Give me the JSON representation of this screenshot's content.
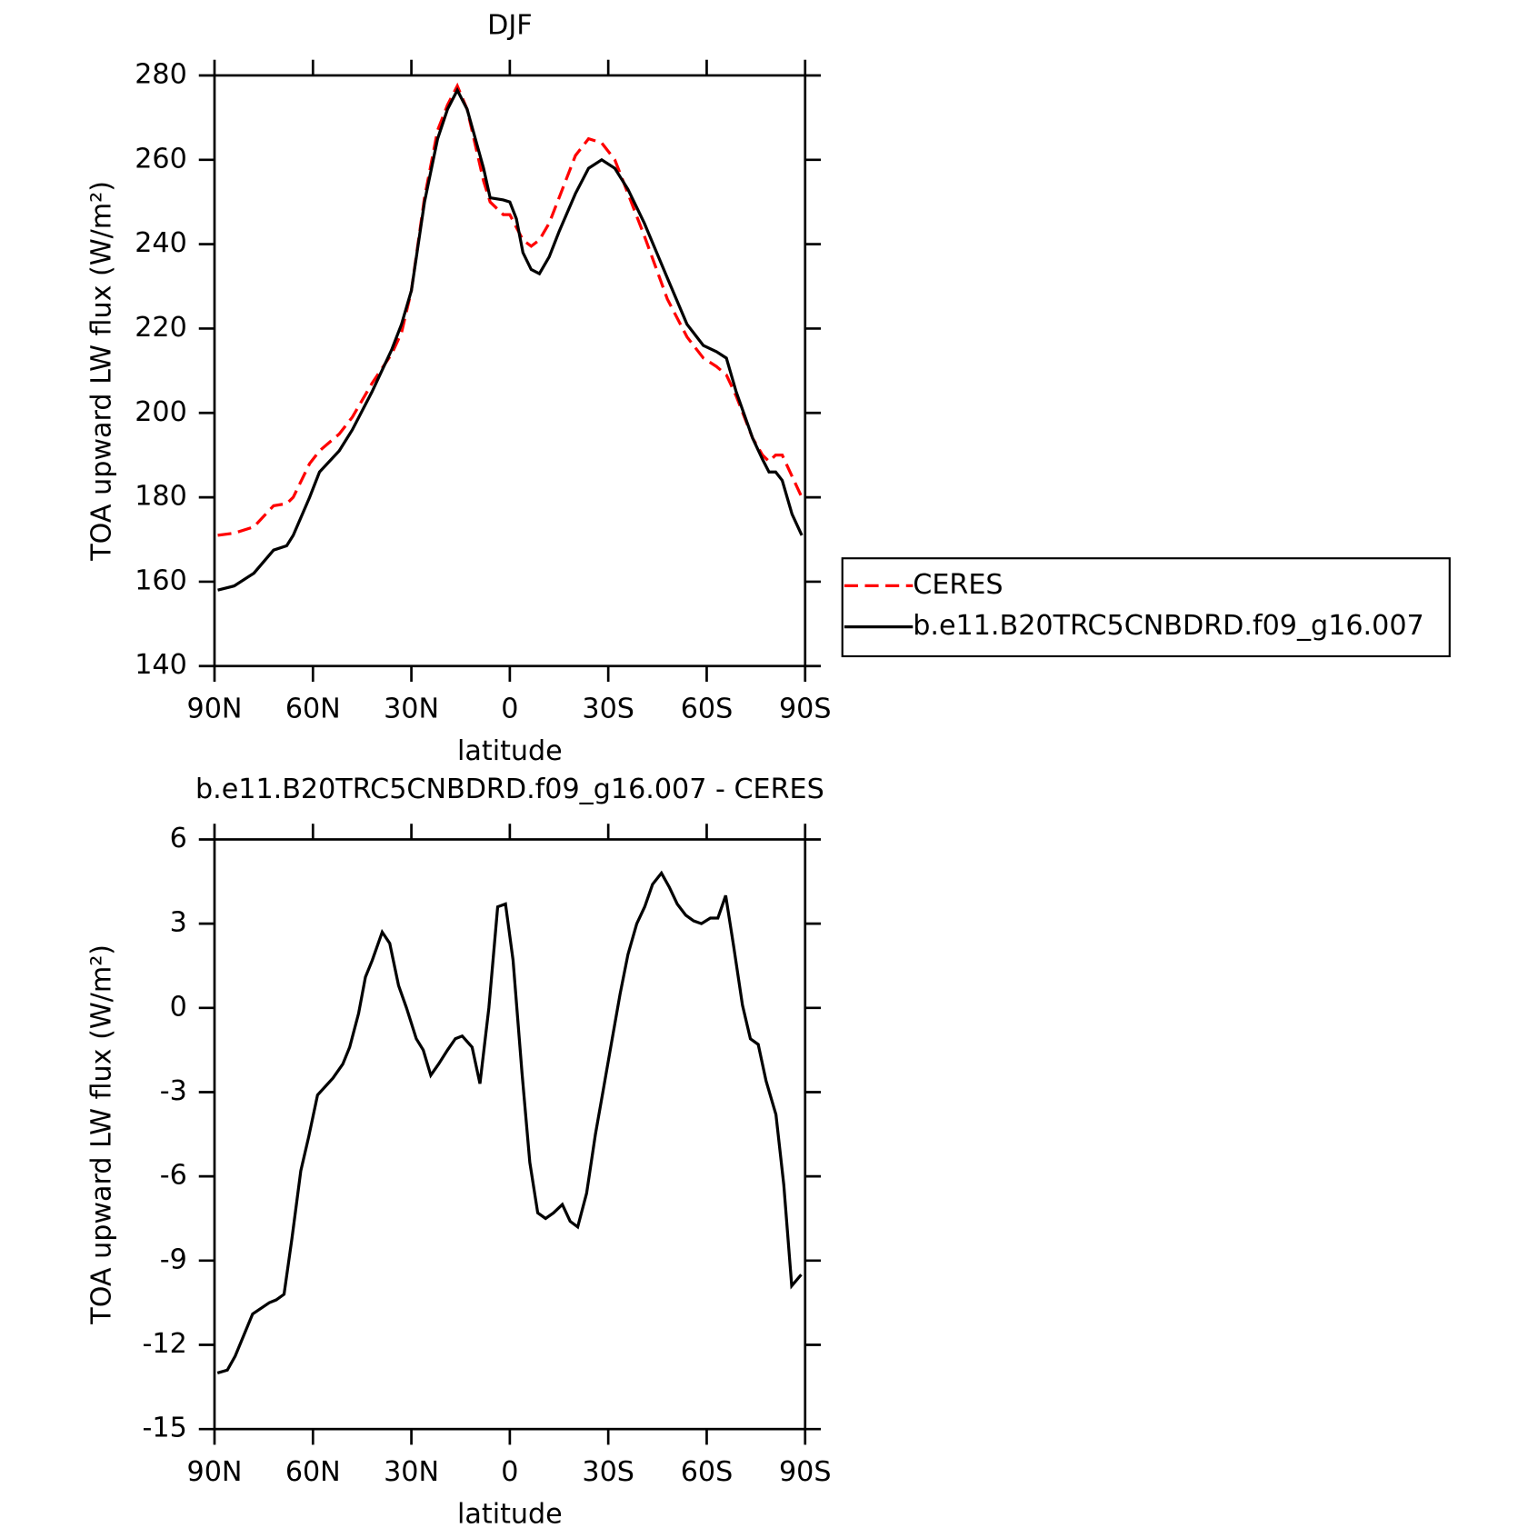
{
  "chart_data": [
    {
      "type": "line",
      "title": "DJF",
      "xlabel": "latitude",
      "ylabel": "TOA upward LW flux (W/m²)",
      "x": [
        89,
        84,
        78,
        72,
        68,
        66,
        61,
        58,
        52,
        48,
        42,
        36,
        33,
        30,
        26,
        22,
        19,
        16,
        13,
        8,
        6,
        2,
        0,
        -2,
        -4,
        -6.5,
        -9,
        -12,
        -15,
        -20,
        -24,
        -28,
        -32,
        -36,
        -41,
        -48,
        -54,
        -59,
        -63,
        -66,
        -69,
        -74,
        -77,
        -79,
        -81,
        -83,
        -86,
        -89
      ],
      "series": [
        {
          "name": "CERES",
          "color": "#ff0000",
          "linestyle": "dashed",
          "values": [
            171,
            171.5,
            173,
            178,
            178.5,
            180,
            188,
            191,
            195,
            199,
            207,
            214,
            219,
            229,
            251,
            267,
            273,
            277.5,
            272,
            255,
            250,
            247,
            247,
            244,
            241,
            239.5,
            241,
            245,
            251,
            261,
            265,
            264,
            260,
            252,
            242,
            227,
            218,
            213,
            211,
            209,
            204,
            194,
            190,
            188.5,
            190,
            190,
            185,
            180
          ]
        },
        {
          "name": "b.e11.B20TRC5CNBDRD.f09_g16.007",
          "color": "#000000",
          "linestyle": "solid",
          "values": [
            158,
            159,
            162,
            167.5,
            168.5,
            171,
            180,
            186,
            191,
            196,
            205,
            215,
            221,
            229,
            250,
            265,
            272,
            276.5,
            272,
            258,
            251,
            250.5,
            250,
            246,
            238,
            234,
            233,
            237,
            243,
            252,
            258,
            260,
            258,
            253,
            245,
            232,
            221,
            216,
            214.5,
            213,
            205,
            194,
            189,
            186,
            186,
            184,
            176,
            171
          ]
        }
      ],
      "xlim": [
        90,
        -90
      ],
      "xticks": [
        {
          "value": 90,
          "label": "90N"
        },
        {
          "value": 60,
          "label": "60N"
        },
        {
          "value": 30,
          "label": "30N"
        },
        0,
        {
          "value": -30,
          "label": "30S"
        },
        {
          "value": -60,
          "label": "60S"
        },
        {
          "value": -90,
          "label": "90S"
        }
      ],
      "ylim": [
        140,
        280
      ],
      "yticks": [
        140,
        160,
        180,
        200,
        220,
        240,
        260,
        280
      ],
      "legend": "right"
    },
    {
      "type": "line",
      "title": "b.e11.B20TRC5CNBDRD.f09_g16.007 - CERES",
      "xlabel": "latitude",
      "ylabel": "TOA upward LW flux (W/m²)",
      "x": [
        89.1,
        86.1,
        83.7,
        78.4,
        73.3,
        71.2,
        68.8,
        66.4,
        63.7,
        61.3,
        58.6,
        53.9,
        50.9,
        48.8,
        46.1,
        44.0,
        41.9,
        38.9,
        36.6,
        33.9,
        31.5,
        28.5,
        26.4,
        24.1,
        21.7,
        19.0,
        16.6,
        14.5,
        11.5,
        9.1,
        6.4,
        3.7,
        1.3,
        -1.0,
        -3.7,
        -6.1,
        -8.5,
        -10.9,
        -13.3,
        -16.0,
        -18.4,
        -20.7,
        -23.4,
        -26.1,
        -28.5,
        -30.9,
        -33.6,
        -36.0,
        -38.7,
        -41.1,
        -43.5,
        -46.2,
        -48.6,
        -51.0,
        -53.6,
        -56.0,
        -58.4,
        -61.1,
        -63.4,
        -65.8,
        -68.2,
        -70.9,
        -73.3,
        -75.7,
        -78.1,
        -81.1,
        -83.5,
        -85.9,
        -88.8
      ],
      "series": [
        {
          "color": "#000000",
          "linestyle": "solid",
          "values": [
            -13.0,
            -12.9,
            -12.4,
            -10.9,
            -10.5,
            -10.4,
            -10.2,
            -8.2,
            -5.8,
            -4.6,
            -3.1,
            -2.5,
            -2.0,
            -1.4,
            -0.2,
            1.1,
            1.7,
            2.7,
            2.3,
            0.8,
            0.0,
            -1.1,
            -1.5,
            -2.4,
            -2.0,
            -1.5,
            -1.1,
            -1.0,
            -1.4,
            -2.7,
            0.0,
            3.6,
            3.7,
            1.7,
            -2.3,
            -5.5,
            -7.3,
            -7.5,
            -7.3,
            -7.0,
            -7.6,
            -7.8,
            -6.6,
            -4.5,
            -2.9,
            -1.3,
            0.5,
            1.9,
            3.0,
            3.6,
            4.4,
            4.8,
            4.3,
            3.7,
            3.3,
            3.1,
            3.0,
            3.2,
            3.2,
            4.0,
            2.2,
            0.1,
            -1.1,
            -1.3,
            -2.6,
            -3.8,
            -6.3,
            -9.9,
            -9.5
          ]
        }
      ],
      "xlim": [
        90,
        -90
      ],
      "xticks": [
        {
          "value": 90,
          "label": "90N"
        },
        {
          "value": 60,
          "label": "60N"
        },
        {
          "value": 30,
          "label": "30N"
        },
        0,
        {
          "value": -30,
          "label": "30S"
        },
        {
          "value": -60,
          "label": "60S"
        },
        {
          "value": -90,
          "label": "90S"
        }
      ],
      "ylim": [
        -15,
        6
      ],
      "yticks": [
        -15,
        -12,
        -9,
        -6,
        -3,
        0,
        3,
        6
      ]
    }
  ]
}
